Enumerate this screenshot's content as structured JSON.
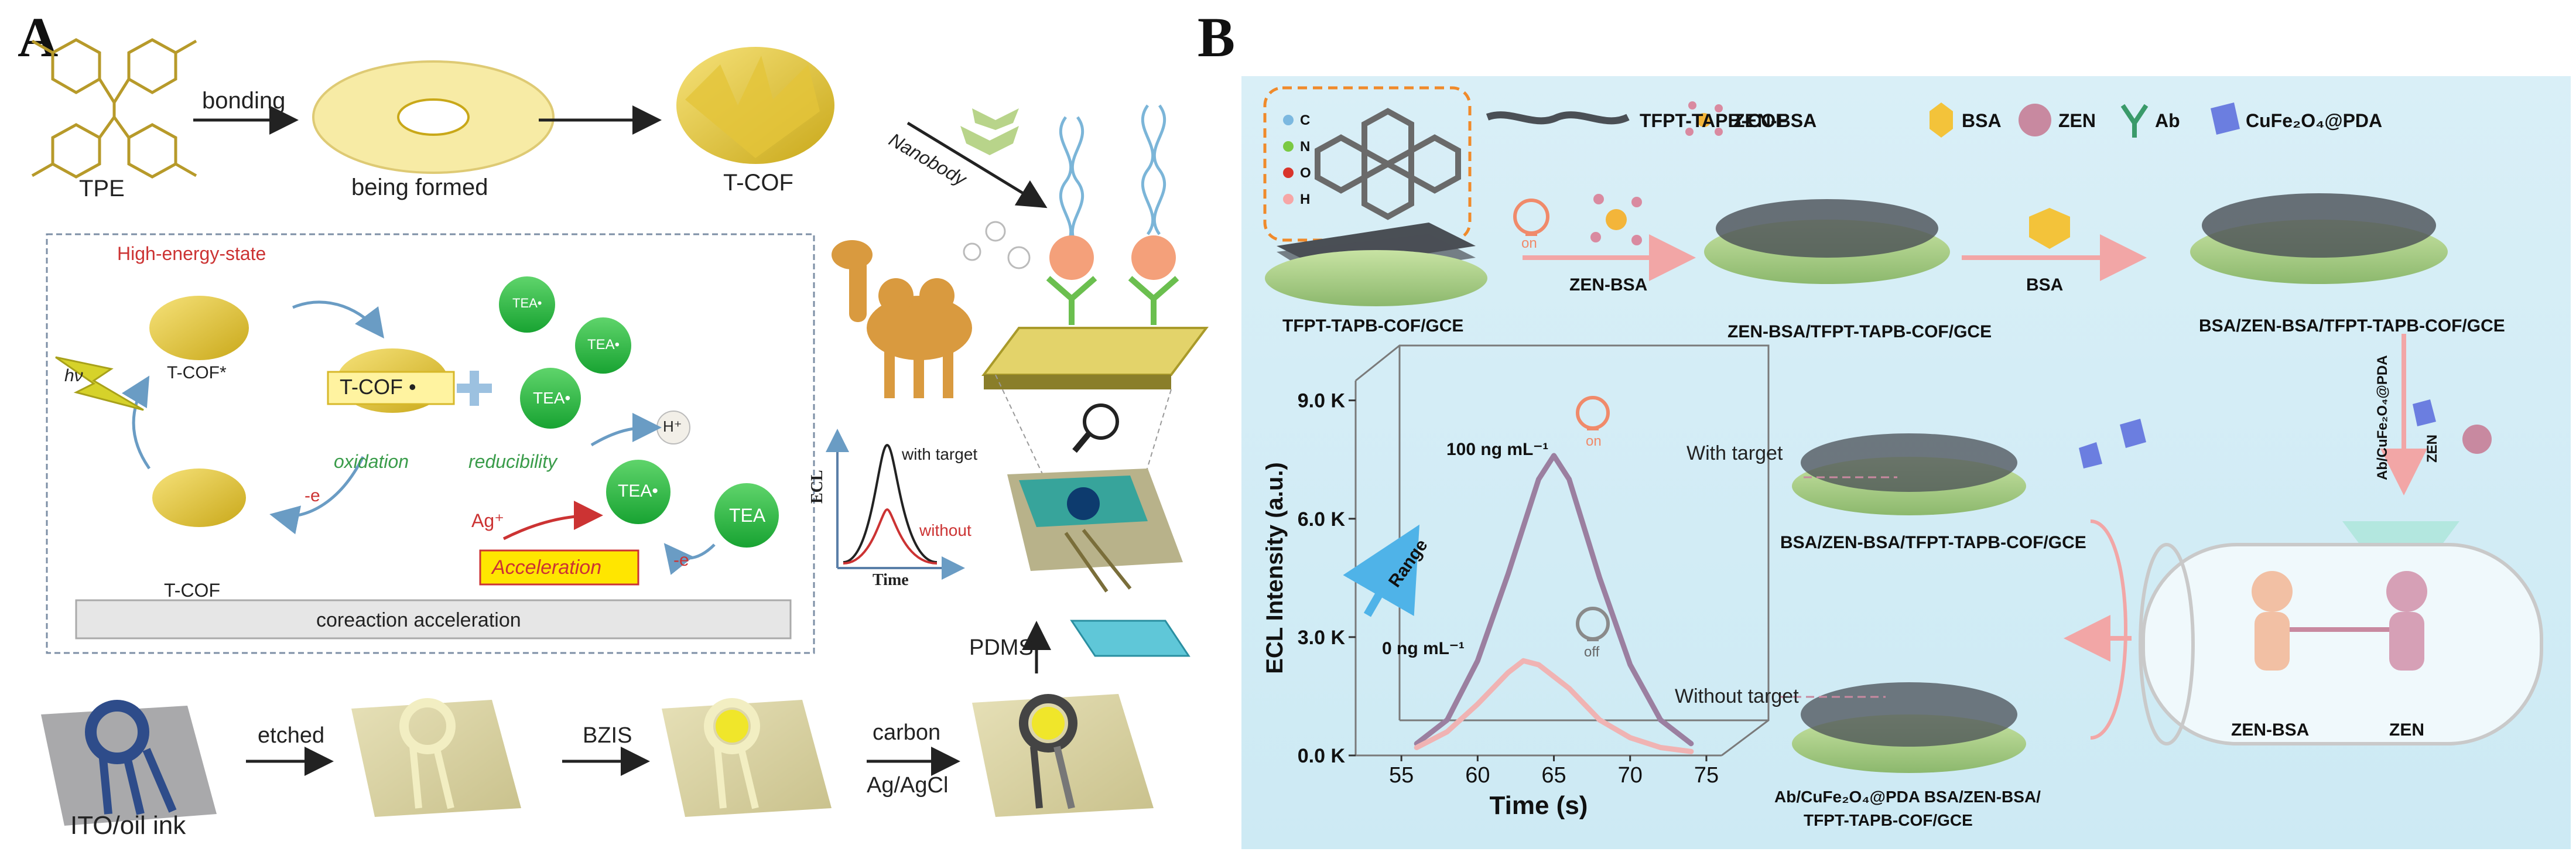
{
  "panelA": {
    "letter": "A",
    "top": {
      "tpe": "TPE",
      "bonding": "bonding",
      "being_formed": "being formed",
      "tcof": "T-COF"
    },
    "nanobody": "Nanobody",
    "mechanism": {
      "high_energy": "High-energy-state",
      "hv": "hν",
      "tcof_star": "T-COF*",
      "tcof_radical": "T-COF •",
      "tcof": "T-COF",
      "oxidation": "oxidation",
      "minus_e": "-e",
      "reducibility": "reducibility",
      "tea_dot": "TEA•",
      "tea": "TEA",
      "h_plus": "H⁺",
      "ag_plus": "Ag⁺",
      "acceleration": "Acceleration",
      "minus_e2": "-e",
      "banner": "coreaction acceleration"
    },
    "ecl_plot": {
      "ylabel": "ECL",
      "xlabel": "Time",
      "with_target": "with target",
      "without": "without"
    },
    "pdms": "PDMS",
    "bottom": {
      "ito": "ITO/oil ink",
      "etched": "etched",
      "bzis": "BZIS",
      "carbon": "carbon",
      "agcl": "Ag/AgCl"
    }
  },
  "panelB": {
    "letter": "B",
    "legend": {
      "atoms": [
        "C",
        "N",
        "O",
        "H"
      ],
      "items": [
        "TFPT-TAPB-COF",
        "ZEN-BSA",
        "BSA",
        "ZEN",
        "Ab",
        "CuFe₂O₄@PDA"
      ]
    },
    "on": "on",
    "off": "off",
    "steps": {
      "zen_bsa": "ZEN-BSA",
      "bsa": "BSA",
      "ab_label": "Ab/CuFe₂O₄@PDA",
      "zen": "ZEN"
    },
    "electrodes": {
      "e1": "TFPT-TAPB-COF/GCE",
      "e2": "ZEN-BSA/TFPT-TAPB-COF/GCE",
      "e3": "BSA/ZEN-BSA/TFPT-TAPB-COF/GCE",
      "e4": "BSA/ZEN-BSA/TFPT-TAPB-COF/GCE",
      "e5_line1": "Ab/CuFe₂O₄@PDA BSA/ZEN-BSA/",
      "e5_line2": "TFPT-TAPB-COF/GCE"
    },
    "with_target": "With target",
    "without_target": "Without  target",
    "range": "Range",
    "conc_high": "100 ng mL⁻¹",
    "conc_low": "0 ng mL⁻¹",
    "tube": {
      "left": "ZEN-BSA",
      "right": "ZEN"
    }
  },
  "chart_data": {
    "type": "line",
    "xlabel": "Time (s)",
    "ylabel": "ECL Intensity (a.u.)",
    "xlim": [
      52,
      76
    ],
    "ylim": [
      0,
      9500
    ],
    "x_ticks": [
      55,
      60,
      65,
      70,
      75
    ],
    "y_ticks": [
      {
        "value": 0,
        "label": "0.0 K"
      },
      {
        "value": 3000,
        "label": "3.0 K"
      },
      {
        "value": 6000,
        "label": "6.0 K"
      },
      {
        "value": 9000,
        "label": "9.0 K"
      }
    ],
    "series": [
      {
        "x": [
          56,
          58,
          60,
          62,
          64,
          65,
          66,
          68,
          70,
          72,
          74
        ],
        "values": [
          300,
          900,
          2400,
          4600,
          7000,
          7600,
          7000,
          4500,
          2300,
          900,
          300
        ],
        "color": "#9b7fa0"
      },
      {
        "x": [
          56,
          58,
          60,
          62,
          63,
          64,
          66,
          68,
          70,
          72,
          74
        ],
        "values": [
          200,
          600,
          1300,
          2100,
          2400,
          2300,
          1700,
          900,
          450,
          200,
          100
        ],
        "color": "#f0b3b3"
      }
    ]
  }
}
